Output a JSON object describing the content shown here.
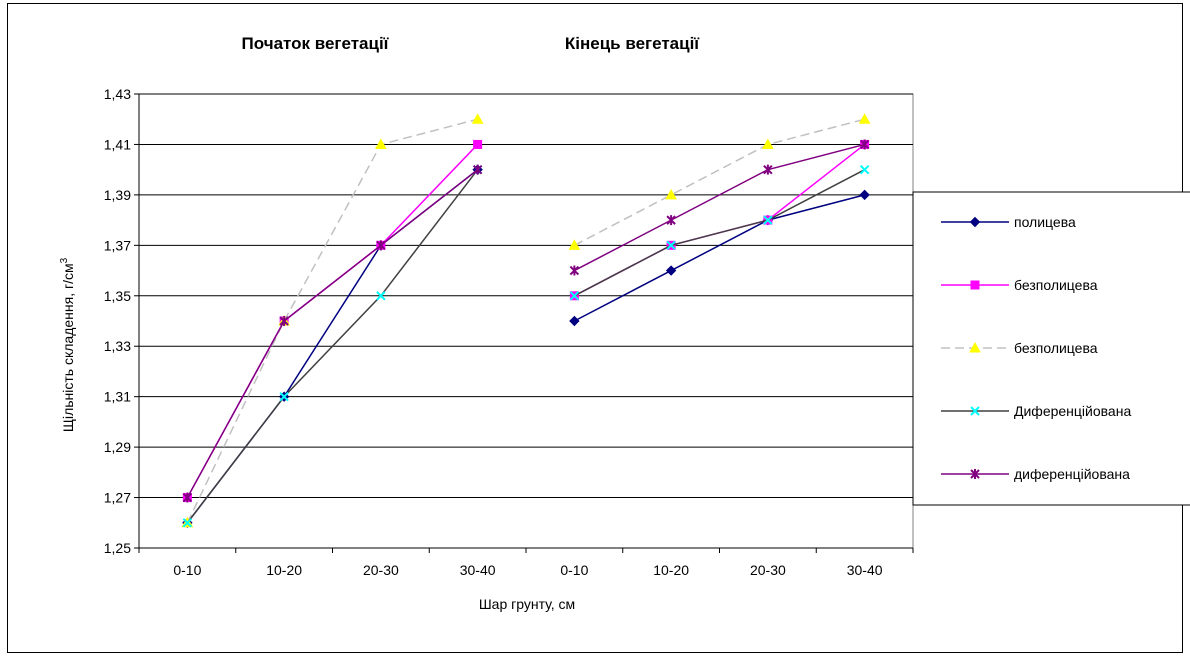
{
  "chart_data": {
    "type": "line",
    "section_titles": [
      "Початок вегетації",
      "Кінець вегетації"
    ],
    "categories": [
      "0-10",
      "10-20",
      "20-30",
      "30-40",
      "0-10",
      "10-20",
      "20-30",
      "30-40"
    ],
    "xlabel": "Шар грунту, см",
    "ylabel": "Щільність складення, г/см",
    "ylabel_sup": "3",
    "ylim": [
      1.25,
      1.43
    ],
    "yticks": [
      "1,25",
      "1,27",
      "1,29",
      "1,31",
      "1,33",
      "1,35",
      "1,37",
      "1,39",
      "1,41",
      "1,43"
    ],
    "grid": true,
    "legend_position": "right",
    "series": [
      {
        "name": "полицева",
        "color": "#000080",
        "marker": "diamond",
        "marker_color": "#000080",
        "dashed": false,
        "values": [
          1.26,
          1.31,
          1.37,
          1.4,
          1.34,
          1.36,
          1.38,
          1.39
        ]
      },
      {
        "name": "безполицева",
        "color": "#FF00FF",
        "marker": "square",
        "marker_color": "#FF00FF",
        "dashed": false,
        "values": [
          1.27,
          1.34,
          1.37,
          1.41,
          1.35,
          1.37,
          1.38,
          1.41
        ]
      },
      {
        "name": "безполицева",
        "color": "#C0C0C0",
        "marker": "triangle",
        "marker_color": "#FFFF00",
        "dashed": true,
        "values": [
          1.26,
          1.34,
          1.41,
          1.42,
          1.37,
          1.39,
          1.41,
          1.42
        ]
      },
      {
        "name": "Диференційована",
        "color": "#404040",
        "marker": "x",
        "marker_color": "#00FFFF",
        "dashed": false,
        "values": [
          1.26,
          1.31,
          1.35,
          1.4,
          1.35,
          1.37,
          1.38,
          1.4
        ]
      },
      {
        "name": "диференційована",
        "color": "#800080",
        "marker": "star",
        "marker_color": "#800080",
        "dashed": false,
        "values": [
          1.27,
          1.34,
          1.37,
          1.4,
          1.36,
          1.38,
          1.4,
          1.41
        ]
      }
    ]
  }
}
